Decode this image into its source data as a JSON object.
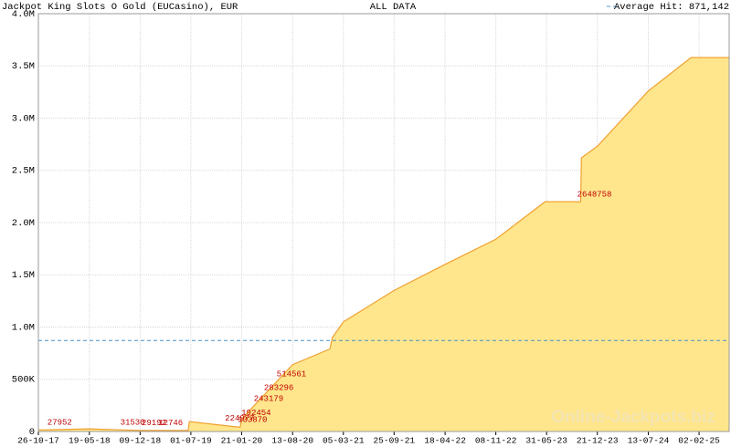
{
  "chart_data": {
    "type": "area",
    "title": "Jackpot King Slots O Gold (EUCasino), EUR",
    "subtitle": "ALL DATA",
    "watermark": "Online-Jackpots.biz",
    "fill_color": "#ffe68c",
    "line_color": "#f0a030",
    "grid": true,
    "x": [
      "26-10-17",
      "19-05-18",
      "09-12-18",
      "20-06-19",
      "25-06-19",
      "15-01-20",
      "21-01-20",
      "13-08-20",
      "10-01-21",
      "20-01-21",
      "05-03-21",
      "25-09-21",
      "18-04-22",
      "08-11-22",
      "25-05-23",
      "31-05-23",
      "15-10-23",
      "18-10-23",
      "21-12-23",
      "13-07-24",
      "01-01-25",
      "02-02-25",
      "03-06-25"
    ],
    "values": [
      15000,
      25000,
      10000,
      10000,
      95000,
      40000,
      120000,
      640000,
      790000,
      900000,
      1050000,
      1350000,
      1600000,
      1840000,
      2200000,
      2200000,
      2200000,
      2620000,
      2730000,
      3260000,
      3580000,
      3580000,
      3580000
    ],
    "xlim": [
      "26-10-17",
      "03-06-25"
    ],
    "xticks": [
      "26-10-17",
      "19-05-18",
      "09-12-18",
      "01-07-19",
      "21-01-20",
      "13-08-20",
      "05-03-21",
      "25-09-21",
      "18-04-22",
      "08-11-22",
      "31-05-23",
      "21-12-23",
      "13-07-24",
      "02-02-25"
    ],
    "ylim": [
      0,
      4000000
    ],
    "yticks": [
      0,
      {
        "value": 500000,
        "label": "500K"
      },
      {
        "value": 1000000,
        "label": "1.0M"
      },
      {
        "value": 1500000,
        "label": "1.5M"
      },
      {
        "value": 2000000,
        "label": "2.0M"
      },
      {
        "value": 2500000,
        "label": "2.5M"
      },
      {
        "value": 3000000,
        "label": "3.0M"
      },
      {
        "value": 3500000,
        "label": "3.5M"
      },
      {
        "value": 4000000,
        "label": "4.0M"
      }
    ],
    "average": {
      "label": "Average Hit: 871,142",
      "value": 871142,
      "color": "#4a90c8"
    },
    "hits": [
      {
        "x": "01-12-17",
        "label": "27952"
      },
      {
        "x": "20-09-18",
        "label": "31530"
      },
      {
        "x": "15-12-18",
        "label": "29192"
      },
      {
        "x": "20-02-19",
        "label": "12746"
      },
      {
        "x": "05-01-20",
        "label": "133870"
      },
      {
        "x": "20-01-20",
        "label": "192454"
      },
      {
        "x": "15-11-19",
        "label": "224977"
      },
      {
        "x": "10-03-20",
        "label": "243179"
      },
      {
        "x": "20-04-20",
        "label": "283296"
      },
      {
        "x": "10-06-20",
        "label": "514561"
      },
      {
        "x": "01-10-23",
        "label": "2648758"
      }
    ]
  }
}
